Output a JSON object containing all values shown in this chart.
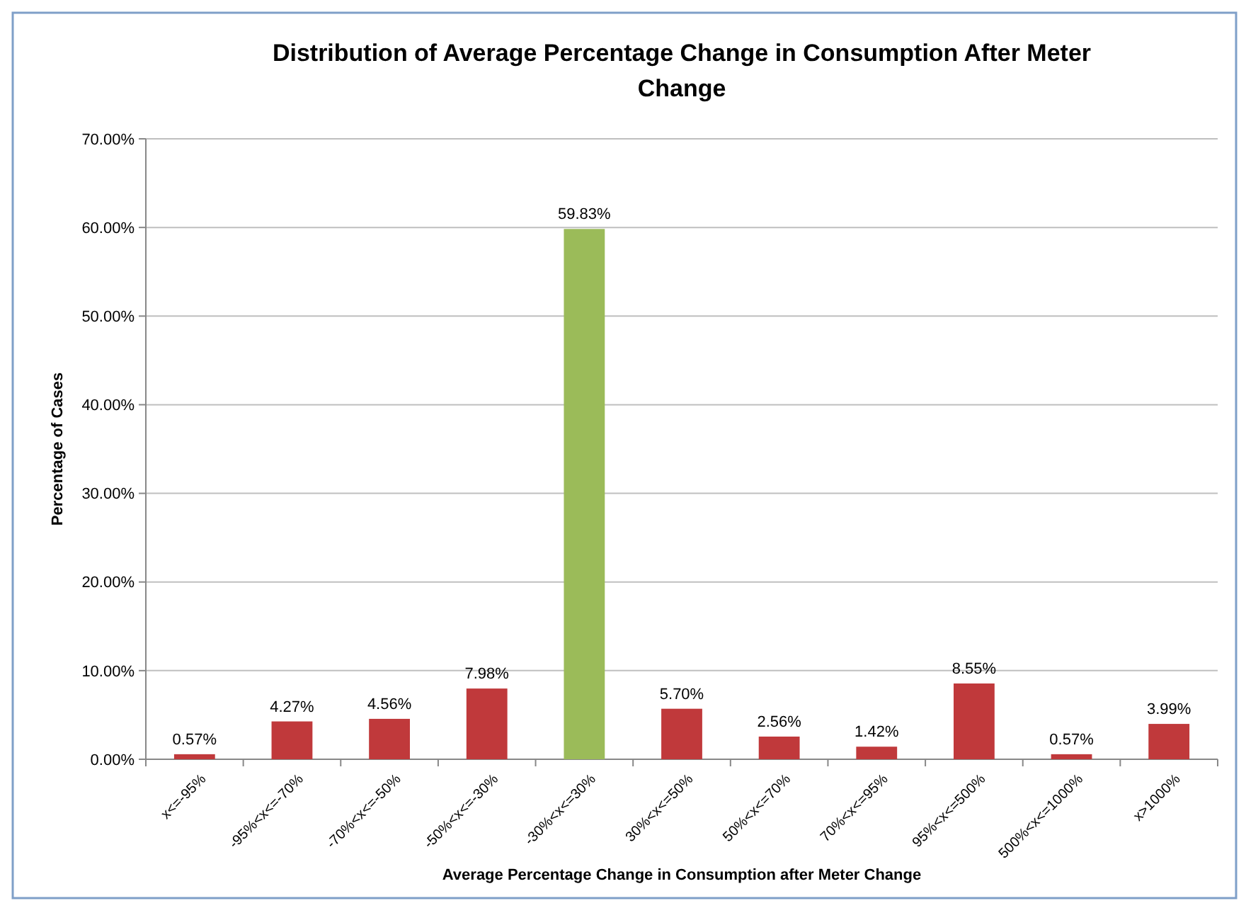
{
  "chart_data": {
    "type": "bar",
    "title": "Distribution of Average Percentage Change in Consumption After Meter Change",
    "xlabel": "Average Percentage Change in Consumption after Meter Change",
    "ylabel": "Percentage of Cases",
    "categories": [
      "x<=-95%",
      "-95%<x<=-70%",
      "-70%<x<=-50%",
      "-50%<x<=-30%",
      "-30%<x<=30%",
      "30%<x<=50%",
      "50%<x<=70%",
      "70%<x<=95%",
      "95%<x<=500%",
      "500%<x<=1000%",
      "x>1000%"
    ],
    "values": [
      0.57,
      4.27,
      4.56,
      7.98,
      59.83,
      5.7,
      2.56,
      1.42,
      8.55,
      0.57,
      3.99
    ],
    "colors": [
      "#c0393b",
      "#c0393b",
      "#c0393b",
      "#c0393b",
      "#9bbb59",
      "#c0393b",
      "#c0393b",
      "#c0393b",
      "#c0393b",
      "#c0393b",
      "#c0393b"
    ],
    "value_labels": [
      "0.57%",
      "4.27%",
      "4.56%",
      "7.98%",
      "59.83%",
      "5.70%",
      "2.56%",
      "1.42%",
      "8.55%",
      "0.57%",
      "3.99%"
    ],
    "ylim": [
      0,
      70
    ],
    "yticks": [
      {
        "value": 0,
        "label": "0.00%"
      },
      {
        "value": 10,
        "label": "10.00%"
      },
      {
        "value": 20,
        "label": "20.00%"
      },
      {
        "value": 30,
        "label": "30.00%"
      },
      {
        "value": 40,
        "label": "40.00%"
      },
      {
        "value": 50,
        "label": "50.00%"
      },
      {
        "value": 60,
        "label": "60.00%"
      },
      {
        "value": 70,
        "label": "70.00%"
      }
    ],
    "grid": "y"
  }
}
